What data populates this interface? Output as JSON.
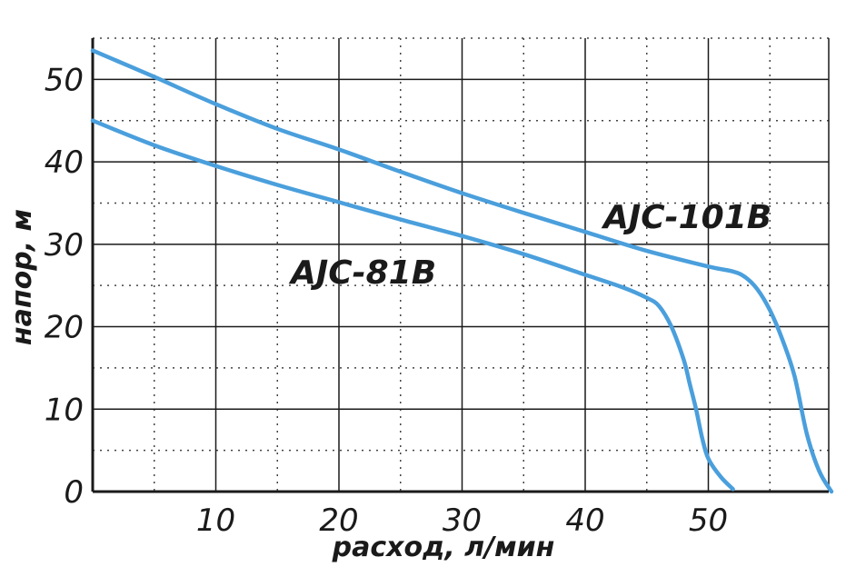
{
  "chart_data": {
    "type": "line",
    "title": "",
    "xlabel": "расход, л/мин",
    "ylabel": "напор, м",
    "xlim": [
      0,
      60
    ],
    "ylim": [
      0,
      55
    ],
    "x_major_ticks": [
      10,
      20,
      30,
      40,
      50
    ],
    "y_major_ticks": [
      0,
      10,
      20,
      30,
      40,
      50
    ],
    "grid": true,
    "line_color": "#4a9fdc",
    "series": [
      {
        "name": "AJC-81B",
        "x": [
          0,
          5,
          10,
          15,
          20,
          25,
          30,
          35,
          40,
          43,
          45,
          46,
          47,
          48,
          48.5,
          49,
          49.5,
          50,
          51,
          52
        ],
        "y": [
          45,
          42,
          39.5,
          37.2,
          35.1,
          33,
          31,
          28.8,
          26.3,
          24.8,
          23.5,
          22.5,
          20,
          16,
          13,
          10,
          6.5,
          4,
          1.8,
          0.3
        ]
      },
      {
        "name": "AJC-101B",
        "x": [
          0,
          5,
          10,
          15,
          20,
          25,
          30,
          35,
          40,
          45,
          50,
          52,
          53,
          54,
          55,
          56,
          57,
          58,
          59,
          60
        ],
        "y": [
          53.5,
          50.3,
          47,
          44,
          41.5,
          38.8,
          36.2,
          33.8,
          31.5,
          29.2,
          27.3,
          26.7,
          26,
          24.5,
          22,
          18.5,
          14,
          7,
          2.5,
          0
        ]
      }
    ]
  },
  "labels": {
    "tick_0": "0",
    "series_label_81": "AJC-81B",
    "series_label_101": "AJC-101B"
  }
}
